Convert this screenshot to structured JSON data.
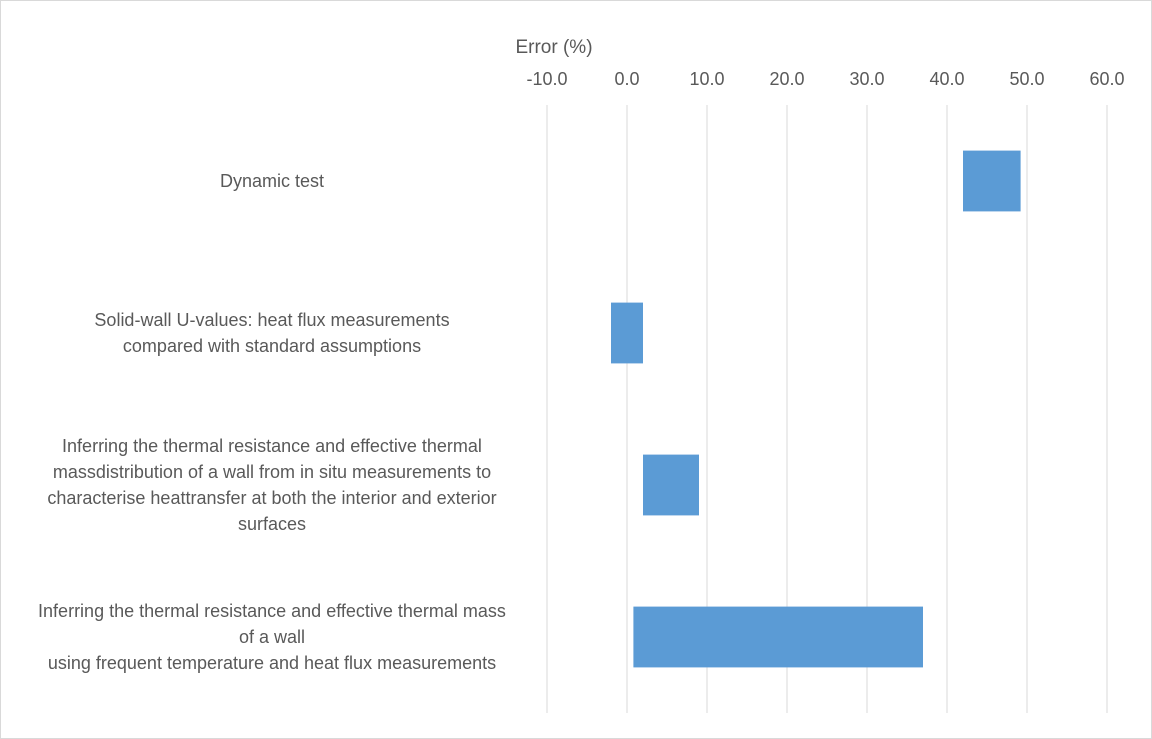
{
  "chart_data": {
    "type": "bar",
    "orientation": "horizontal",
    "style": "floating-range",
    "xlabel": "Error (%)",
    "xlim": [
      -10,
      60
    ],
    "xticks": [
      "-10.0",
      "0.0",
      "10.0",
      "20.0",
      "30.0",
      "40.0",
      "50.0",
      "60.0"
    ],
    "xtick_values": [
      -10,
      0,
      10,
      20,
      30,
      40,
      50,
      60
    ],
    "axis_position": "top",
    "grid": true,
    "bar_color": "#5b9bd5",
    "categories": [
      {
        "label": [
          "Dynamic test"
        ],
        "min": 42,
        "max": 49.2
      },
      {
        "label": [
          "Solid-wall U-values: heat flux measurements",
          "compared with standard assumptions"
        ],
        "min": -2,
        "max": 2
      },
      {
        "label": [
          "Inferring the thermal resistance and effective thermal",
          "massdistribution of a wall from in situ measurements to",
          "characterise heattransfer at both the interior and exterior",
          "surfaces"
        ],
        "min": 2,
        "max": 9
      },
      {
        "label": [
          "Inferring the thermal resistance and effective thermal mass",
          "of a wall",
          "using frequent temperature and heat flux measurements"
        ],
        "min": 0.8,
        "max": 37
      }
    ]
  }
}
